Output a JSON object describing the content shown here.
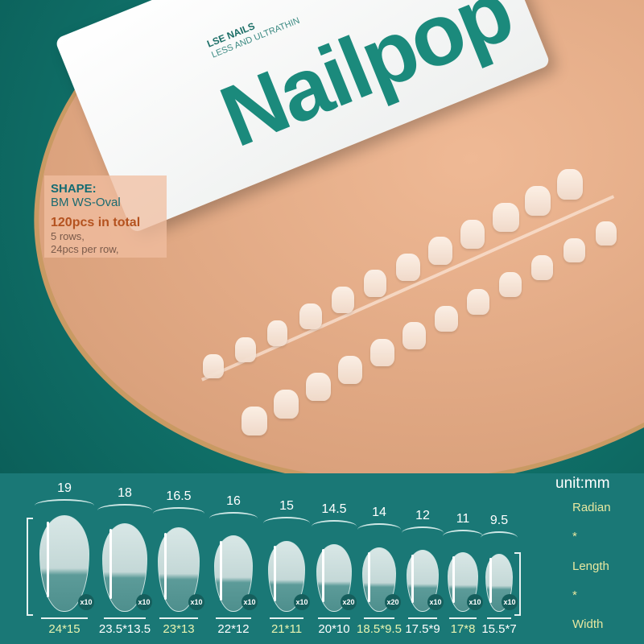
{
  "package": {
    "brand": "Nailpop",
    "heading": "LSE NAILS",
    "subheading": "LESS AND ULTRATHIN"
  },
  "info": {
    "shape_label": "SHAPE:",
    "shape_value": "BM WS-Oval",
    "total": "120pcs in total",
    "rows": "5 rows,",
    "per_row": "24pcs per row,"
  },
  "sizes": {
    "unit": "unit:mm",
    "legend": [
      "Radian",
      "*",
      "Length",
      "*",
      "Width"
    ],
    "items": [
      {
        "radian": "19",
        "dims": "24*15",
        "count": "x10"
      },
      {
        "radian": "18",
        "dims": "23.5*13.5",
        "count": "x10"
      },
      {
        "radian": "16.5",
        "dims": "23*13",
        "count": "x10"
      },
      {
        "radian": "16",
        "dims": "22*12",
        "count": "x10"
      },
      {
        "radian": "15",
        "dims": "21*11",
        "count": "x10"
      },
      {
        "radian": "14.5",
        "dims": "20*10",
        "count": "x20"
      },
      {
        "radian": "14",
        "dims": "18.5*9.5",
        "count": "x20"
      },
      {
        "radian": "12",
        "dims": "17.5*9",
        "count": "x10"
      },
      {
        "radian": "11",
        "dims": "17*8",
        "count": "x10"
      },
      {
        "radian": "9.5",
        "dims": "15.5*7",
        "count": "x10"
      }
    ]
  },
  "colors": {
    "teal": "#1a7876",
    "peach": "#dba27d",
    "brand_green": "#1b8a7c",
    "highlight": "#e7e7a0",
    "total_orange": "#b4521f"
  }
}
